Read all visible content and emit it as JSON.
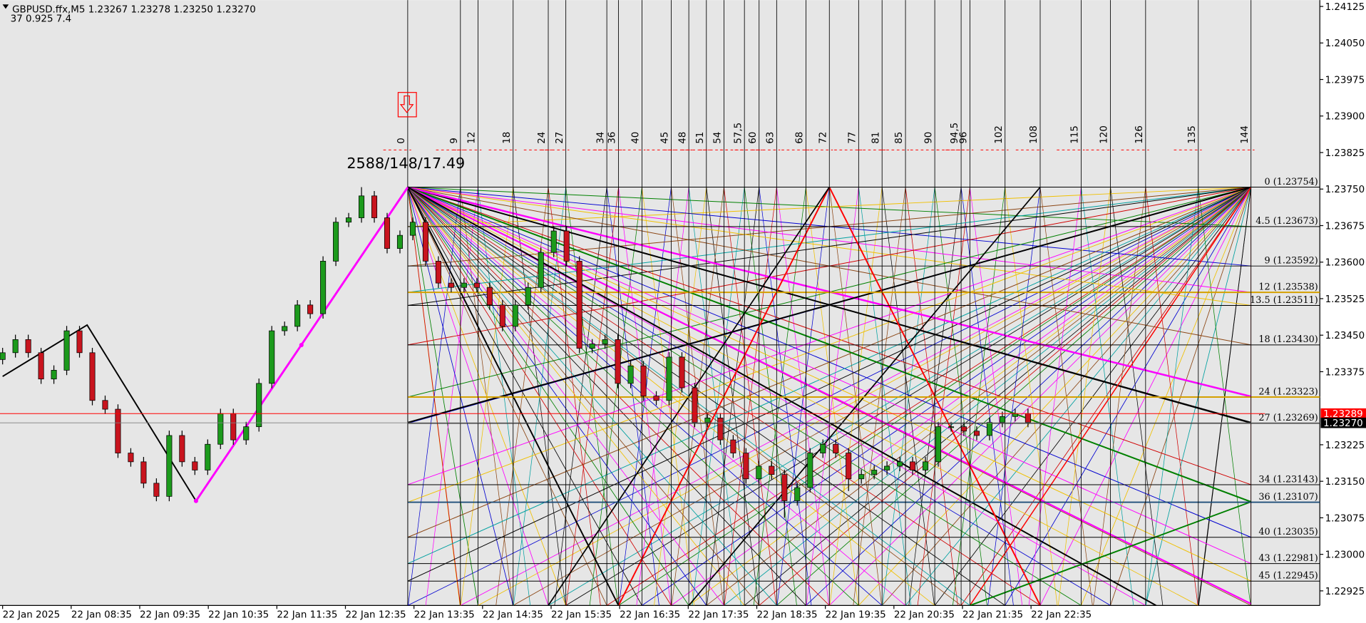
{
  "header": {
    "symbol_line": "GBPUSD.ffx,M5 1.23267 1.23278 1.23250 1.23270",
    "info_line": "37 0.925 7.4"
  },
  "chart_data": {
    "type": "candlestick",
    "annotation": "2588/148/17.49",
    "colors": {
      "up": "#1c9a1c",
      "down": "#c8141e",
      "background": "#e6e6e6"
    },
    "candles": {
      "open": [
        1.234,
        1.23414,
        1.23441,
        1.23414,
        1.2336,
        1.23378,
        1.23459,
        1.23414,
        1.23316,
        1.23298,
        1.23208,
        1.2319,
        1.23146,
        1.23119,
        1.23244,
        1.2319,
        1.23173,
        1.23226,
        1.23289,
        1.23235,
        1.23262,
        1.23351,
        1.23459,
        1.23468,
        1.23512,
        1.23494,
        1.23602,
        1.23682,
        1.23691,
        1.23736,
        1.23691,
        1.23628,
        1.23655,
        1.23682,
        1.23602,
        1.23557,
        1.23548,
        1.23557,
        1.23548,
        1.23512,
        1.23468,
        1.23512,
        1.23548,
        1.2362,
        1.23664,
        1.23602,
        1.23423,
        1.23432,
        1.23441,
        1.23351,
        1.23387,
        1.23325,
        1.23316,
        1.23405,
        1.23342,
        1.23271,
        1.2328,
        1.23235,
        1.23208,
        1.23155,
        1.23181,
        1.23164,
        1.2311,
        1.23137,
        1.23208,
        1.23226,
        1.23208,
        1.23155,
        1.23164,
        1.23173,
        1.23181,
        1.2319,
        1.23173,
        1.2319,
        1.23262,
        1.23262,
        1.23253,
        1.23244,
        1.23271,
        1.23283,
        1.23289
      ],
      "high": [
        1.23424,
        1.23451,
        1.23451,
        1.23424,
        1.23388,
        1.23469,
        1.23469,
        1.23424,
        1.23326,
        1.23308,
        1.23218,
        1.232,
        1.23156,
        1.23254,
        1.23254,
        1.232,
        1.23236,
        1.23299,
        1.23299,
        1.23272,
        1.23361,
        1.23469,
        1.23478,
        1.23522,
        1.23522,
        1.23612,
        1.23692,
        1.23701,
        1.23754,
        1.23746,
        1.23701,
        1.23665,
        1.23692,
        1.23692,
        1.23612,
        1.23567,
        1.23567,
        1.23567,
        1.23558,
        1.23522,
        1.23522,
        1.23558,
        1.2363,
        1.23674,
        1.23674,
        1.23612,
        1.23442,
        1.23451,
        1.23451,
        1.23397,
        1.23397,
        1.23335,
        1.23415,
        1.23415,
        1.23352,
        1.2329,
        1.2329,
        1.23245,
        1.23218,
        1.23191,
        1.23191,
        1.23174,
        1.23147,
        1.23218,
        1.23236,
        1.23236,
        1.23218,
        1.23174,
        1.23183,
        1.23191,
        1.232,
        1.232,
        1.232,
        1.23272,
        1.23272,
        1.23272,
        1.23263,
        1.23281,
        1.23293,
        1.23299,
        1.23299
      ],
      "low": [
        1.2339,
        1.23404,
        1.23404,
        1.2335,
        1.2335,
        1.23368,
        1.23404,
        1.23306,
        1.23288,
        1.23198,
        1.2318,
        1.23136,
        1.23109,
        1.23109,
        1.2318,
        1.23163,
        1.23163,
        1.23216,
        1.23225,
        1.23225,
        1.23252,
        1.23341,
        1.23449,
        1.23458,
        1.23484,
        1.23484,
        1.23592,
        1.23672,
        1.23681,
        1.23681,
        1.23618,
        1.23618,
        1.23645,
        1.23592,
        1.23547,
        1.23538,
        1.23538,
        1.23538,
        1.23502,
        1.23458,
        1.23458,
        1.23502,
        1.23538,
        1.2361,
        1.23592,
        1.23413,
        1.23413,
        1.23422,
        1.23341,
        1.23341,
        1.23315,
        1.23306,
        1.23306,
        1.23332,
        1.23261,
        1.23261,
        1.23225,
        1.23198,
        1.23145,
        1.23145,
        1.23154,
        1.23075,
        1.231,
        1.23127,
        1.23198,
        1.23198,
        1.2313,
        1.23145,
        1.23154,
        1.23163,
        1.23171,
        1.23163,
        1.23163,
        1.2318,
        1.23252,
        1.23243,
        1.23234,
        1.23234,
        1.23261,
        1.23273,
        1.23261
      ],
      "close": [
        1.23414,
        1.23441,
        1.23414,
        1.2336,
        1.23378,
        1.23459,
        1.23414,
        1.23316,
        1.23298,
        1.23208,
        1.2319,
        1.23146,
        1.23119,
        1.23244,
        1.2319,
        1.23173,
        1.23226,
        1.23289,
        1.23235,
        1.23262,
        1.23351,
        1.23459,
        1.23468,
        1.23512,
        1.23494,
        1.23602,
        1.23682,
        1.23691,
        1.23736,
        1.23691,
        1.23628,
        1.23655,
        1.23682,
        1.23602,
        1.23557,
        1.23548,
        1.23557,
        1.23548,
        1.23512,
        1.23468,
        1.23512,
        1.23548,
        1.2362,
        1.23664,
        1.23602,
        1.23423,
        1.23432,
        1.23441,
        1.23351,
        1.23387,
        1.23325,
        1.23316,
        1.23405,
        1.23342,
        1.23271,
        1.2328,
        1.23235,
        1.23208,
        1.23155,
        1.23181,
        1.23164,
        1.2311,
        1.23137,
        1.23208,
        1.23226,
        1.23208,
        1.23155,
        1.23164,
        1.23173,
        1.23181,
        1.2319,
        1.23173,
        1.2319,
        1.23262,
        1.23262,
        1.23253,
        1.23244,
        1.23271,
        1.23283,
        1.23289,
        1.23271
      ]
    },
    "ylim": [
      1.22895,
      1.24138
    ],
    "yticks": [
      1.24125,
      {
        "value": 1.2405,
        "label": "1.24050"
      },
      1.23975,
      {
        "value": 1.239,
        "label": "1.23900"
      },
      1.23825,
      {
        "value": 1.2375,
        "label": "1.23750"
      },
      1.23675,
      {
        "value": 1.236,
        "label": "1.23600"
      },
      1.23525,
      {
        "value": 1.2345,
        "label": "1.23450"
      },
      1.23375,
      1.23225,
      {
        "value": 1.2315,
        "label": "1.23150"
      },
      1.23075,
      {
        "value": 1.23,
        "label": "1.23000"
      },
      1.22925
    ],
    "x_labels": [
      "22 Jan 2025",
      "22 Jan 08:35",
      "22 Jan 09:35",
      "22 Jan 10:35",
      "22 Jan 11:35",
      "22 Jan 12:35",
      "22 Jan 13:35",
      "22 Jan 14:35",
      "22 Jan 15:35",
      "22 Jan 16:35",
      "22 Jan 17:35",
      "22 Jan 18:35",
      "22 Jan 19:35",
      "22 Jan 20:35",
      "22 Jan 21:35",
      "22 Jan 22:35"
    ],
    "price_lines": [
      {
        "value": 1.23289,
        "label": "1.23289",
        "color": "#ff0000"
      },
      {
        "value": 1.2327,
        "label": "1.23270",
        "color": "#000000"
      }
    ],
    "gann_levels": [
      {
        "value": 1.23754,
        "label": "0 (1.23754)",
        "color": "#000000"
      },
      {
        "value": 1.23673,
        "label": "4.5 (1.23673)",
        "color": "#000000"
      },
      {
        "value": 1.23592,
        "label": "9 (1.23592)",
        "color": "#000000"
      },
      {
        "value": 1.23538,
        "label": "12 (1.23538)",
        "color": "#d4a000"
      },
      {
        "value": 1.23511,
        "label": "13.5 (1.23511)",
        "color": "#000000"
      },
      {
        "value": 1.2343,
        "label": "18 (1.23430)",
        "color": "#000000"
      },
      {
        "value": 1.23323,
        "label": "24 (1.23323)",
        "color": "#d4a000"
      },
      {
        "value": 1.23269,
        "label": "27 (1.23269)",
        "color": "#000000"
      },
      {
        "value": 1.23143,
        "label": "34 (1.23143)",
        "color": "#000000"
      },
      {
        "value": 1.23107,
        "label": "36 (1.23107)",
        "color": "#1f4e79"
      },
      {
        "value": 1.23035,
        "label": "40 (1.23035)",
        "color": "#000000"
      },
      {
        "value": 1.22981,
        "label": "43 (1.22981)",
        "color": "#000000"
      },
      {
        "value": 1.22945,
        "label": "45 (1.22945)",
        "color": "#000000"
      }
    ],
    "gann_xticks": [
      0,
      9,
      12,
      18,
      24,
      27,
      34,
      36,
      40,
      45,
      48,
      51,
      54,
      {
        "value": 57.5,
        "label": "57,5"
      },
      60,
      63,
      68,
      72,
      77,
      81,
      85,
      90,
      {
        "value": 94.5,
        "label": "94,5"
      },
      96,
      102,
      108,
      115,
      120,
      126,
      135,
      144
    ]
  }
}
